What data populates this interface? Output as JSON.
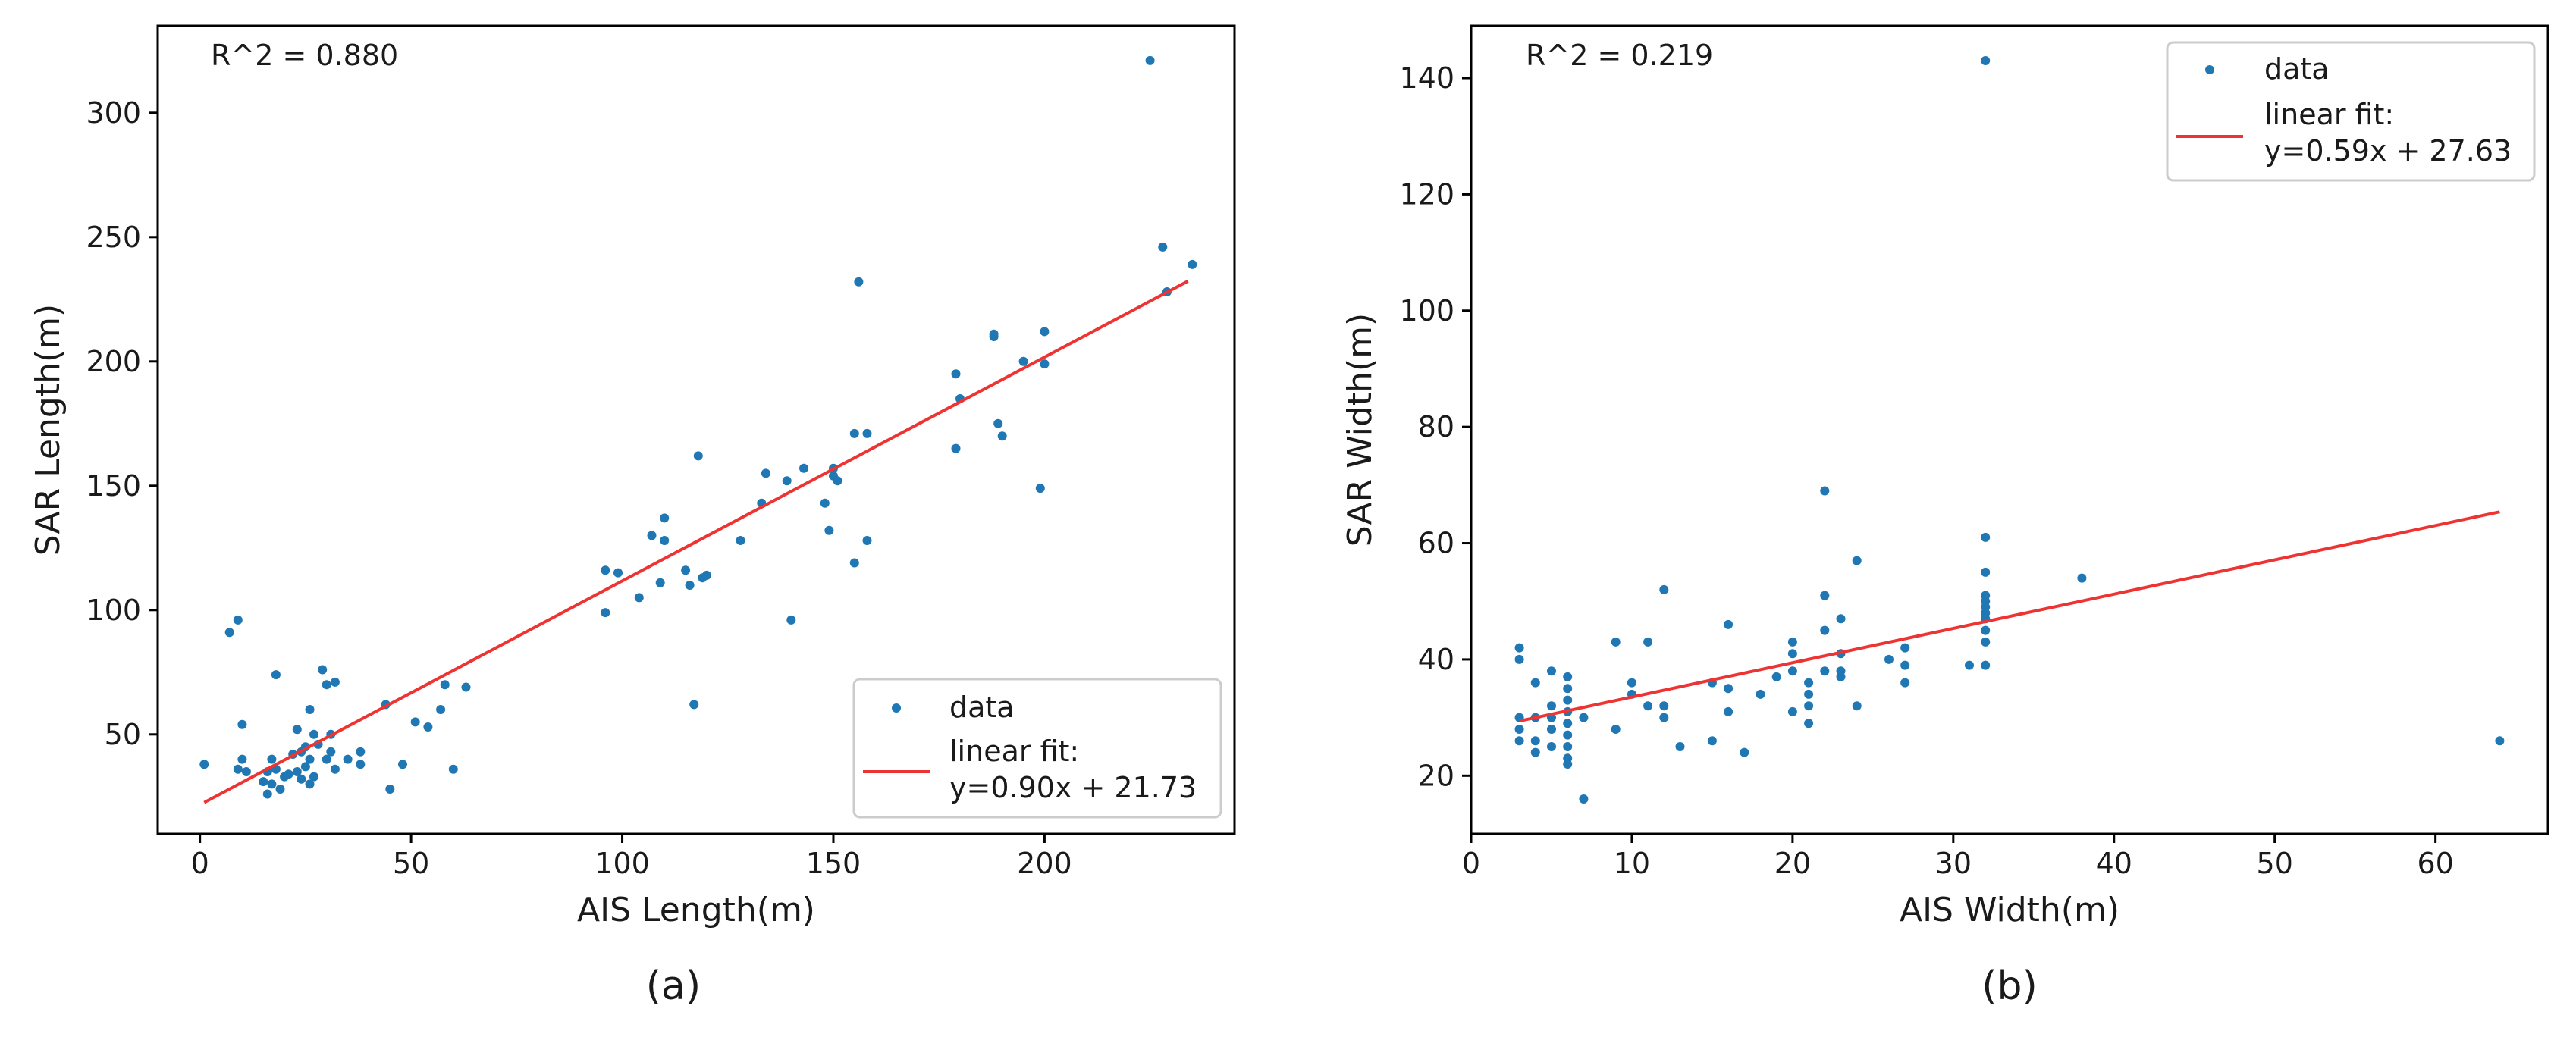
{
  "chart_data": [
    {
      "type": "scatter",
      "panel": "a",
      "caption": "(a)",
      "r2_label": "R^2 = 0.880",
      "xlabel": "AIS Length(m)",
      "ylabel": "SAR Length(m)",
      "xlim": [
        -10,
        245
      ],
      "ylim": [
        10,
        335
      ],
      "xticks": [
        0,
        50,
        100,
        150,
        200
      ],
      "yticks": [
        50,
        100,
        150,
        200,
        250,
        300
      ],
      "legend": {
        "position": "lower-right",
        "data_label": "data",
        "fit_label_line1": "linear fit:",
        "fit_label_line2": "y=0.90x + 21.73"
      },
      "series": [
        {
          "name": "data",
          "color": "#1f77b4",
          "points": [
            [
              1,
              38
            ],
            [
              7,
              91
            ],
            [
              9,
              96
            ],
            [
              9,
              36
            ],
            [
              10,
              40
            ],
            [
              10,
              54
            ],
            [
              11,
              35
            ],
            [
              15,
              31
            ],
            [
              16,
              26
            ],
            [
              16,
              35
            ],
            [
              17,
              40
            ],
            [
              17,
              30
            ],
            [
              18,
              74
            ],
            [
              18,
              36
            ],
            [
              19,
              28
            ],
            [
              20,
              33
            ],
            [
              21,
              34
            ],
            [
              22,
              42
            ],
            [
              23,
              52
            ],
            [
              23,
              35
            ],
            [
              24,
              43
            ],
            [
              24,
              32
            ],
            [
              25,
              37
            ],
            [
              25,
              45
            ],
            [
              26,
              30
            ],
            [
              26,
              40
            ],
            [
              26,
              60
            ],
            [
              27,
              33
            ],
            [
              27,
              50
            ],
            [
              28,
              46
            ],
            [
              29,
              76
            ],
            [
              30,
              40
            ],
            [
              30,
              70
            ],
            [
              31,
              50
            ],
            [
              31,
              43
            ],
            [
              32,
              71
            ],
            [
              32,
              36
            ],
            [
              35,
              40
            ],
            [
              38,
              38
            ],
            [
              38,
              43
            ],
            [
              44,
              62
            ],
            [
              45,
              28
            ],
            [
              48,
              38
            ],
            [
              51,
              55
            ],
            [
              54,
              53
            ],
            [
              57,
              60
            ],
            [
              58,
              70
            ],
            [
              60,
              36
            ],
            [
              63,
              69
            ],
            [
              96,
              99
            ],
            [
              96,
              116
            ],
            [
              99,
              115
            ],
            [
              104,
              105
            ],
            [
              107,
              130
            ],
            [
              109,
              111
            ],
            [
              110,
              128
            ],
            [
              110,
              137
            ],
            [
              115,
              116
            ],
            [
              116,
              110
            ],
            [
              117,
              62
            ],
            [
              118,
              162
            ],
            [
              119,
              113
            ],
            [
              120,
              114
            ],
            [
              128,
              128
            ],
            [
              133,
              143
            ],
            [
              134,
              155
            ],
            [
              139,
              152
            ],
            [
              140,
              96
            ],
            [
              143,
              157
            ],
            [
              148,
              143
            ],
            [
              149,
              132
            ],
            [
              150,
              154
            ],
            [
              150,
              157
            ],
            [
              151,
              152
            ],
            [
              155,
              119
            ],
            [
              155,
              171
            ],
            [
              156,
              232
            ],
            [
              158,
              171
            ],
            [
              158,
              128
            ],
            [
              179,
              195
            ],
            [
              179,
              165
            ],
            [
              180,
              185
            ],
            [
              188,
              210
            ],
            [
              188,
              211
            ],
            [
              189,
              175
            ],
            [
              190,
              170
            ],
            [
              195,
              200
            ],
            [
              199,
              149
            ],
            [
              200,
              212
            ],
            [
              200,
              199
            ],
            [
              225,
              321
            ],
            [
              228,
              246
            ],
            [
              229,
              228
            ],
            [
              235,
              239
            ]
          ]
        },
        {
          "name": "linear fit",
          "color": "#ee3333",
          "x_range": [
            1,
            234
          ],
          "slope": 0.9,
          "intercept": 21.73
        }
      ]
    },
    {
      "type": "scatter",
      "panel": "b",
      "caption": "(b)",
      "r2_label": "R^2 = 0.219",
      "xlabel": "AIS Width(m)",
      "ylabel": "SAR Width(m)",
      "xlim": [
        0,
        67
      ],
      "ylim": [
        10,
        149
      ],
      "xticks": [
        0,
        10,
        20,
        30,
        40,
        50,
        60
      ],
      "yticks": [
        20,
        40,
        60,
        80,
        100,
        120,
        140
      ],
      "legend": {
        "position": "upper-right",
        "data_label": "data",
        "fit_label_line1": "linear fit:",
        "fit_label_line2": "y=0.59x + 27.63"
      },
      "series": [
        {
          "name": "data",
          "color": "#1f77b4",
          "points": [
            [
              3,
              42
            ],
            [
              3,
              40
            ],
            [
              3,
              30
            ],
            [
              3,
              28
            ],
            [
              3,
              26
            ],
            [
              4,
              36
            ],
            [
              4,
              30
            ],
            [
              4,
              26
            ],
            [
              4,
              24
            ],
            [
              5,
              38
            ],
            [
              5,
              32
            ],
            [
              5,
              30
            ],
            [
              5,
              28
            ],
            [
              5,
              25
            ],
            [
              6,
              37
            ],
            [
              6,
              35
            ],
            [
              6,
              33
            ],
            [
              6,
              31
            ],
            [
              6,
              29
            ],
            [
              6,
              27
            ],
            [
              6,
              25
            ],
            [
              6,
              23
            ],
            [
              6,
              22
            ],
            [
              7,
              30
            ],
            [
              7,
              16
            ],
            [
              9,
              43
            ],
            [
              9,
              28
            ],
            [
              10,
              36
            ],
            [
              10,
              34
            ],
            [
              11,
              32
            ],
            [
              11,
              43
            ],
            [
              12,
              52
            ],
            [
              12,
              30
            ],
            [
              12,
              32
            ],
            [
              13,
              25
            ],
            [
              15,
              36
            ],
            [
              15,
              26
            ],
            [
              16,
              46
            ],
            [
              16,
              31
            ],
            [
              16,
              35
            ],
            [
              17,
              24
            ],
            [
              18,
              34
            ],
            [
              19,
              37
            ],
            [
              20,
              43
            ],
            [
              20,
              41
            ],
            [
              20,
              38
            ],
            [
              20,
              31
            ],
            [
              21,
              36
            ],
            [
              21,
              34
            ],
            [
              21,
              29
            ],
            [
              21,
              32
            ],
            [
              22,
              69
            ],
            [
              22,
              51
            ],
            [
              22,
              45
            ],
            [
              22,
              38
            ],
            [
              23,
              47
            ],
            [
              23,
              41
            ],
            [
              23,
              37
            ],
            [
              23,
              38
            ],
            [
              24,
              57
            ],
            [
              24,
              32
            ],
            [
              26,
              40
            ],
            [
              27,
              42
            ],
            [
              27,
              39
            ],
            [
              27,
              36
            ],
            [
              31,
              39
            ],
            [
              32,
              61
            ],
            [
              32,
              55
            ],
            [
              32,
              51
            ],
            [
              32,
              50
            ],
            [
              32,
              49
            ],
            [
              32,
              48
            ],
            [
              32,
              47
            ],
            [
              32,
              45
            ],
            [
              32,
              43
            ],
            [
              32,
              39
            ],
            [
              32,
              143
            ],
            [
              38,
              54
            ],
            [
              64,
              26
            ]
          ]
        },
        {
          "name": "linear fit",
          "color": "#ee3333",
          "x_range": [
            3,
            64
          ],
          "slope": 0.59,
          "intercept": 27.63
        }
      ]
    }
  ]
}
